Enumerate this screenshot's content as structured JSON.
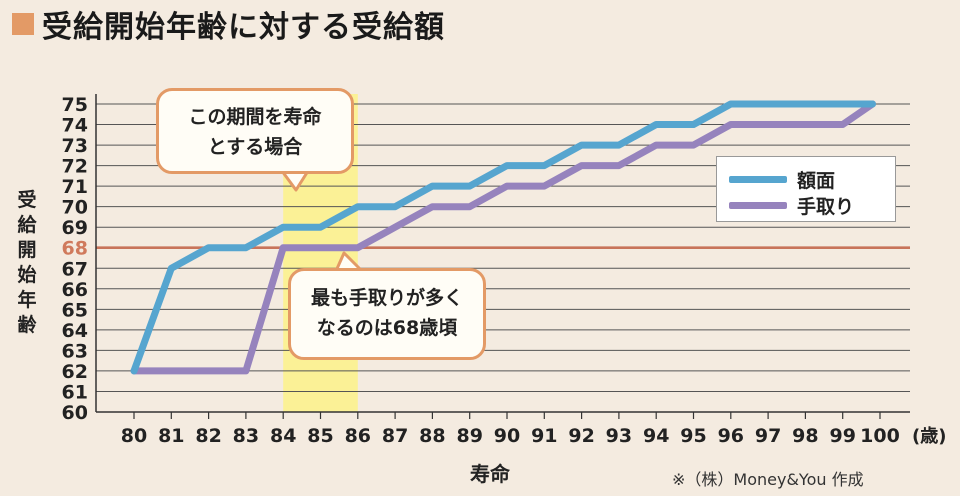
{
  "title": "受給開始年齢に対する受給額",
  "credit": "※（株）Money&You 作成",
  "callouts": {
    "period": [
      "この期間を寿命",
      "とする場合"
    ],
    "peak": [
      "最も手取りが多く",
      "なるのは68歳頃"
    ]
  },
  "chart_data": {
    "type": "line",
    "title": "受給開始年齢に対する受給額",
    "xlabel": "寿命",
    "ylabel": "受給開始年齢",
    "x_unit": "(歳)",
    "x": [
      80,
      81,
      82,
      83,
      84,
      85,
      86,
      87,
      88,
      89,
      90,
      91,
      92,
      93,
      94,
      95,
      96,
      97,
      98,
      99,
      100
    ],
    "xlim": [
      79.5,
      100.9
    ],
    "ylim": [
      60,
      76
    ],
    "yticks": [
      60,
      61,
      62,
      63,
      64,
      65,
      66,
      67,
      68,
      69,
      70,
      71,
      72,
      73,
      74,
      75
    ],
    "highlight_y": 68,
    "highlight_x_range": [
      84,
      86
    ],
    "grid": true,
    "legend_position": "right",
    "series": [
      {
        "name": "額面",
        "color": "#56a5cf",
        "points": [
          [
            80,
            62
          ],
          [
            81,
            67
          ],
          [
            82,
            68
          ],
          [
            83,
            68
          ],
          [
            84,
            69
          ],
          [
            85,
            69
          ],
          [
            86,
            70
          ],
          [
            87,
            70
          ],
          [
            88,
            71
          ],
          [
            89,
            71
          ],
          [
            90,
            72
          ],
          [
            91,
            72
          ],
          [
            92,
            73
          ],
          [
            93,
            73
          ],
          [
            94,
            74
          ],
          [
            95,
            74
          ],
          [
            96,
            75
          ],
          [
            97,
            75
          ],
          [
            98,
            75
          ],
          [
            99,
            75
          ],
          [
            99.8,
            75
          ]
        ]
      },
      {
        "name": "手取り",
        "color": "#9683bd",
        "points": [
          [
            80,
            62
          ],
          [
            81,
            62
          ],
          [
            82,
            62
          ],
          [
            83,
            62
          ],
          [
            84,
            68
          ],
          [
            85,
            68
          ],
          [
            86,
            68
          ],
          [
            87,
            69
          ],
          [
            88,
            70
          ],
          [
            89,
            70
          ],
          [
            90,
            71
          ],
          [
            91,
            71
          ],
          [
            92,
            72
          ],
          [
            93,
            72
          ],
          [
            94,
            73
          ],
          [
            95,
            73
          ],
          [
            96,
            74
          ],
          [
            97,
            74
          ],
          [
            98,
            74
          ],
          [
            99,
            74
          ],
          [
            99.8,
            75
          ]
        ]
      }
    ]
  }
}
